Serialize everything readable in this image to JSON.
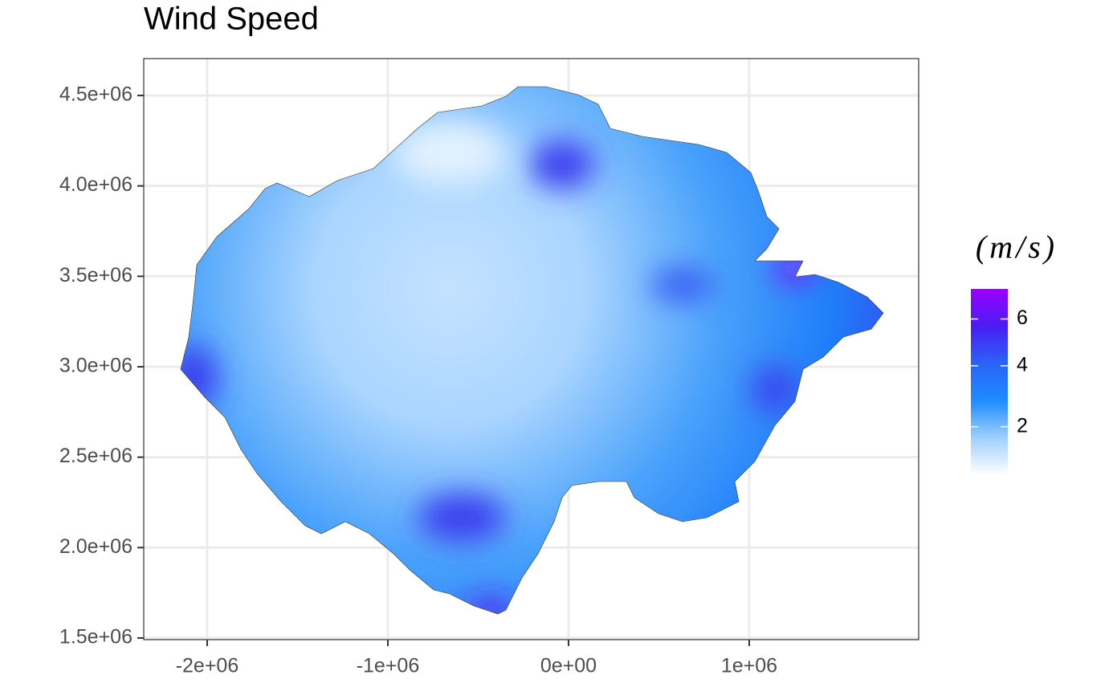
{
  "chart_data": {
    "type": "raster-map",
    "title": "Wind Speed",
    "xlim": [
      -2351000,
      1938000
    ],
    "ylim": [
      1491000,
      4704000
    ],
    "xticks": [
      {
        "value": -2000000,
        "label": "-2e+06"
      },
      {
        "value": -1000000,
        "label": "-1e+06"
      },
      {
        "value": 0,
        "label": "0e+00"
      },
      {
        "value": 1000000,
        "label": "1e+06"
      }
    ],
    "yticks": [
      {
        "value": 1500000,
        "label": "1.5e+06"
      },
      {
        "value": 2000000,
        "label": "2.0e+06"
      },
      {
        "value": 2500000,
        "label": "2.5e+06"
      },
      {
        "value": 3000000,
        "label": "3.0e+06"
      },
      {
        "value": 3500000,
        "label": "3.5e+06"
      },
      {
        "value": 4000000,
        "label": "4.0e+06"
      },
      {
        "value": 4500000,
        "label": "4.5e+06"
      }
    ],
    "grid": true,
    "legend": {
      "title": "(m/s)",
      "clim": [
        0.9,
        7.5
      ],
      "ticks": [
        2,
        4,
        6
      ],
      "scale": "sqrt",
      "colors": [
        "#ffffff",
        "#9fd0ff",
        "#1e8cff",
        "#2a63f8",
        "#4a1cf2",
        "#9a00ff"
      ]
    }
  }
}
